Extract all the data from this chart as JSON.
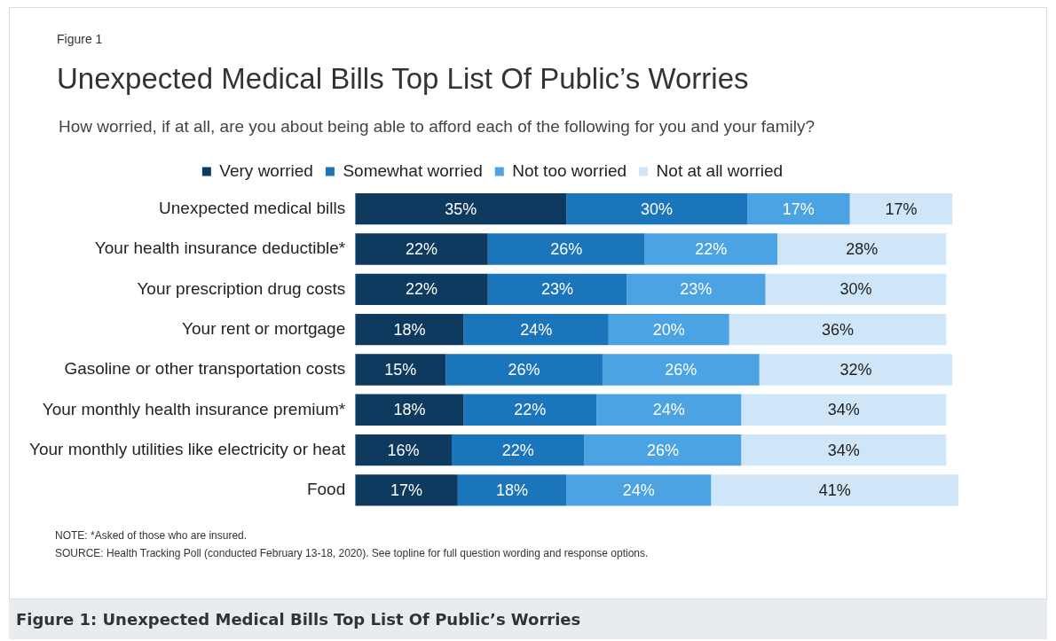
{
  "chart_data": {
    "type": "bar",
    "orientation": "horizontal",
    "stacked": true,
    "legend": "top",
    "title": "Unexpected Medical Bills Top List Of Public’s Worries",
    "subtitle": "How worried, if at all, are you about being able to afford each of the following for you and your family?",
    "categories": [
      "Unexpected medical bills",
      "Your health insurance deductible*",
      "Your prescription drug costs",
      "Your rent or mortgage",
      "Gasoline or other transportation costs",
      "Your monthly health insurance premium*",
      "Your monthly utilities like electricity or heat",
      "Food"
    ],
    "series": [
      {
        "name": "Very worried",
        "color": "#0d3a5e",
        "values": [
          35,
          22,
          22,
          18,
          15,
          18,
          16,
          17
        ],
        "value_labels": [
          "35%",
          "22%",
          "22%",
          "18%",
          "15%",
          "18%",
          "16%",
          "17%"
        ]
      },
      {
        "name": "Somewhat worried",
        "color": "#1b75bb",
        "values": [
          30,
          26,
          23,
          24,
          26,
          22,
          22,
          18
        ],
        "value_labels": [
          "30%",
          "26%",
          "23%",
          "24%",
          "26%",
          "22%",
          "22%",
          "18%"
        ]
      },
      {
        "name": "Not too worried",
        "color": "#4ba3e3",
        "values": [
          17,
          22,
          23,
          20,
          26,
          24,
          26,
          24
        ],
        "value_labels": [
          "17%",
          "22%",
          "23%",
          "20%",
          "26%",
          "24%",
          "26%",
          "24%"
        ]
      },
      {
        "name": "Not at all worried",
        "color": "#cfe6f8",
        "values": [
          17,
          28,
          30,
          36,
          32,
          34,
          34,
          41
        ],
        "value_labels": [
          "17%",
          "28%",
          "30%",
          "36%",
          "32%",
          "34%",
          "34%",
          "41%"
        ]
      }
    ],
    "annotations": [
      "Figure 1",
      "NOTE: *Asked of those who are insured.",
      "SOURCE: Health Tracking Poll (conducted February 13-18, 2020). See topline for full question wording and response options.",
      "Figure 1: Unexpected Medical Bills Top List Of Public’s Worries"
    ]
  }
}
